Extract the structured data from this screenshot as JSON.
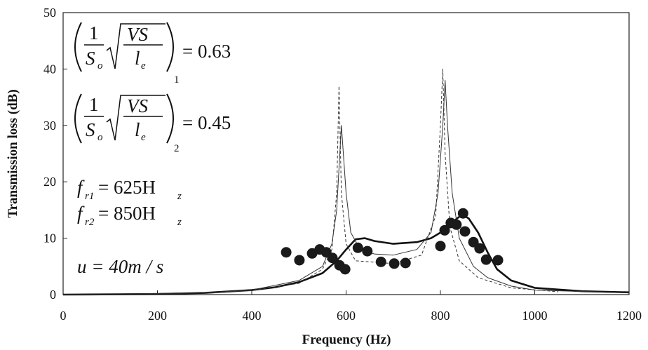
{
  "chart_data": {
    "type": "line",
    "x_label": "Frequency (Hz)",
    "y_label": "Transmission loss (dB)",
    "xlim": [
      0,
      1200
    ],
    "ylim": [
      0,
      50
    ],
    "xticks": [
      0,
      200,
      400,
      600,
      800,
      1000,
      1200
    ],
    "yticks": [
      0,
      10,
      20,
      30,
      40,
      50
    ],
    "series": [
      {
        "kind": "thick",
        "color": "#111111",
        "x": [
          0,
          200,
          300,
          400,
          450,
          500,
          550,
          580,
          600,
          620,
          640,
          660,
          700,
          750,
          780,
          800,
          820,
          840,
          850,
          860,
          880,
          900,
          920,
          950,
          1000,
          1100,
          1200
        ],
        "values": [
          0,
          0.1,
          0.3,
          0.8,
          1.3,
          2.2,
          3.8,
          6,
          8,
          9.8,
          10,
          9.5,
          9,
          9.3,
          10,
          11,
          12.5,
          13.8,
          14,
          13.5,
          11,
          7.5,
          4.5,
          2.5,
          1.2,
          0.6,
          0.4
        ]
      },
      {
        "kind": "thin",
        "color": "#333333",
        "x": [
          0,
          300,
          400,
          500,
          550,
          570,
          580,
          590,
          600,
          610,
          630,
          660,
          700,
          750,
          780,
          795,
          805,
          810,
          815,
          825,
          840,
          870,
          900,
          950,
          1000,
          1200
        ],
        "values": [
          0,
          0.3,
          0.8,
          2.5,
          5,
          9,
          15,
          30,
          18,
          11,
          8,
          7.2,
          7,
          8,
          11,
          18,
          30,
          38,
          30,
          18,
          10,
          5,
          3,
          1.5,
          0.8,
          0.3
        ]
      },
      {
        "kind": "dashed",
        "color": "#333333",
        "x": [
          300,
          400,
          500,
          550,
          570,
          580,
          585,
          590,
          600,
          620,
          700,
          760,
          790,
          800,
          805,
          810,
          820,
          840,
          880,
          950,
          1050
        ],
        "values": [
          0.2,
          0.7,
          2,
          4.5,
          8,
          18,
          37,
          18,
          9,
          6,
          5.5,
          7,
          14,
          30,
          40,
          25,
          12,
          6,
          3,
          1.2,
          0.5
        ]
      },
      {
        "kind": "markers",
        "color": "#1a1a1a",
        "x": [
          473,
          501,
          528,
          544,
          558,
          571,
          586,
          598,
          625,
          645,
          674,
          702,
          726,
          800,
          809,
          822,
          834,
          848,
          852,
          870,
          883,
          897,
          922
        ],
        "values": [
          7.5,
          6.1,
          7.3,
          8,
          7.5,
          6.5,
          5.2,
          4.5,
          8.3,
          7.7,
          5.8,
          5.5,
          5.6,
          8.6,
          11.4,
          12.7,
          12.4,
          14.4,
          11.2,
          9.3,
          8.2,
          6.2,
          6.1
        ]
      }
    ],
    "annotations": {
      "formula1": {
        "numerator": "1",
        "denominator": "S",
        "denominator_sub": "o",
        "radicand_top": "VS",
        "radicand_bottom": "l",
        "radicand_bottom_sub": "e",
        "outer_sub": "1",
        "rhs": "= 0.63"
      },
      "formula2": {
        "numerator": "1",
        "denominator": "S",
        "denominator_sub": "o",
        "radicand_top": "VS",
        "radicand_bottom": "l",
        "radicand_bottom_sub": "e",
        "outer_sub": "2",
        "rhs": "= 0.45"
      },
      "fr1": {
        "symbol": "f",
        "sub": "r1",
        "rhs": "= 625H",
        "unit_sub": "z"
      },
      "fr2": {
        "symbol": "f",
        "sub": "r2",
        "rhs": "= 850H",
        "unit_sub": "z"
      },
      "flow": "u = 40m / s"
    }
  }
}
